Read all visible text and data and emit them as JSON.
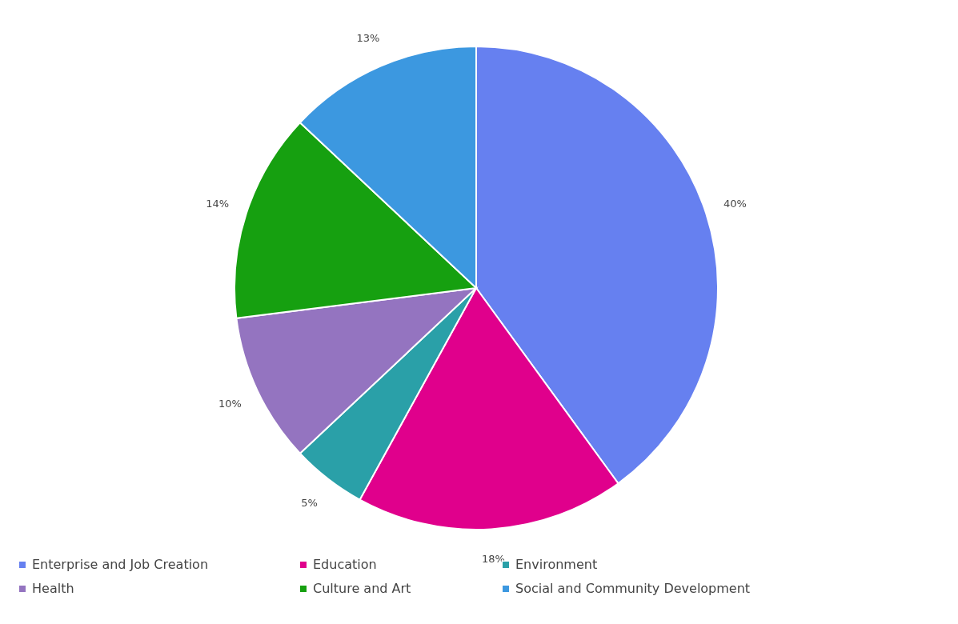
{
  "chart_data": {
    "type": "pie",
    "categories": [
      "Enterprise and Job Creation",
      "Education",
      "Environment",
      "Health",
      "Culture and Art",
      "Social and Community Development"
    ],
    "values": [
      40,
      18,
      5,
      10,
      14,
      13
    ],
    "colors": [
      "#6680f0",
      "#e0008c",
      "#2aa0a8",
      "#9474c0",
      "#16a010",
      "#3c98e0"
    ],
    "value_labels": [
      "40%",
      "18%",
      "5%",
      "10%",
      "14%",
      "13%"
    ],
    "legend": "bottom"
  }
}
